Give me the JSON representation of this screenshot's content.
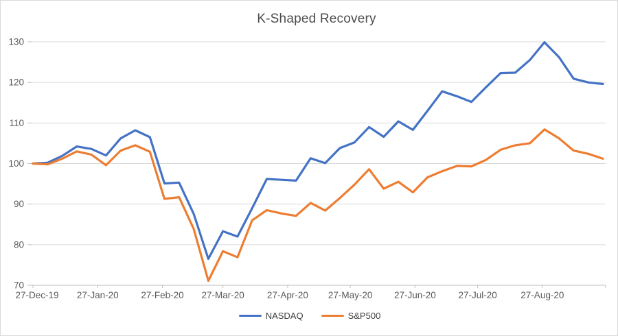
{
  "chart_data": {
    "type": "line",
    "title": "K-Shaped Recovery",
    "xlabel": "",
    "ylabel": "",
    "ylim": [
      70,
      130
    ],
    "y_ticks": [
      70,
      80,
      90,
      100,
      110,
      120,
      130
    ],
    "grid": "horizontal",
    "legend_position": "bottom",
    "x_start_date": "27-Dec-19",
    "x_interval": "weekly",
    "x_tick_labels": [
      "27-Dec-19",
      "27-Jan-20",
      "27-Feb-20",
      "27-Mar-20",
      "27-Apr-20",
      "27-May-20",
      "27-Jun-20",
      "27-Jul-20",
      "27-Aug-20"
    ],
    "x_tick_day_offsets": [
      0,
      31,
      62,
      91,
      122,
      152,
      183,
      213,
      244
    ],
    "series": [
      {
        "name": "NASDAQ",
        "color": "#4472C4",
        "values": [
          100,
          100.2,
          101.9,
          104.2,
          103.6,
          102.0,
          106.2,
          108.2,
          106.5,
          95.1,
          95.3,
          87.6,
          76.5,
          83.3,
          82.0,
          89.0,
          96.2,
          96.0,
          95.8,
          101.3,
          100.1,
          103.8,
          105.2,
          109.0,
          106.6,
          110.4,
          108.3,
          113.0,
          117.8,
          116.6,
          115.2,
          118.8,
          122.3,
          122.4,
          125.5,
          129.9,
          126.2,
          120.9,
          120.0,
          119.6
        ]
      },
      {
        "name": "S&P500",
        "color": "#ED7D31",
        "values": [
          100,
          99.8,
          101.2,
          103.0,
          102.2,
          99.6,
          103.2,
          104.5,
          102.9,
          91.3,
          91.7,
          83.9,
          71.1,
          78.4,
          76.9,
          86.0,
          88.5,
          87.7,
          87.1,
          90.3,
          88.4,
          91.5,
          94.8,
          98.6,
          93.8,
          95.5,
          92.9,
          96.6,
          98.1,
          99.4,
          99.3,
          100.9,
          103.4,
          104.5,
          105.0,
          108.4,
          106.2,
          103.2,
          102.4,
          101.2
        ]
      }
    ],
    "colors": {
      "grid_line": "#d9d9d9",
      "axis_line": "#bfbfbf",
      "tick_mark": "#bfbfbf",
      "axis_text": "#595959",
      "title_text": "#4d4d4d",
      "legend_text": "#404040",
      "background": "#ffffff",
      "border": "#d9d9d9"
    }
  }
}
